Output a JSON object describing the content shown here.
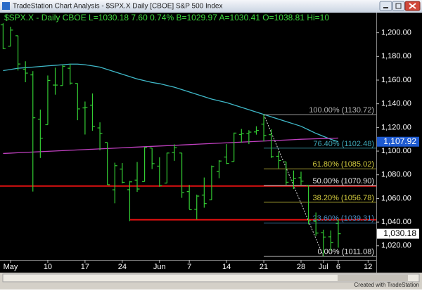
{
  "window": {
    "title": "TradeStation Chart Analysis - $SPX.X  Daily  [CBOE]  S&P 500 Index"
  },
  "footer": "Created with TradeStation",
  "chart_data": {
    "type": "ohlc",
    "header": "$SPX.X - Daily  CBOE  L=1030.18  7.60  0.74%  B=1029.97  A=1030.41  O=1038.81  Hi=10",
    "color": "#33cc33",
    "categories": [
      null,
      "May",
      null,
      null,
      null,
      null,
      "10",
      null,
      null,
      null,
      null,
      "17",
      null,
      null,
      null,
      null,
      "24",
      null,
      null,
      null,
      null,
      "Jun",
      null,
      null,
      null,
      "7",
      null,
      null,
      null,
      null,
      "14",
      null,
      null,
      null,
      null,
      "21",
      null,
      null,
      null,
      null,
      "28",
      null,
      null,
      "Jul",
      null,
      "6",
      null,
      null,
      null,
      "12",
      null
    ],
    "open": [
      1206.8,
      1188.6,
      1197.5,
      1169.2,
      1164.4,
      1127,
      1122.3,
      1155.8,
      1155.4,
      1170,
      1157.2,
      1136.5,
      1138.8,
      1119.6,
      1107.3,
      1067.3,
      1084.8,
      1067.4,
      1075.5,
      1074.3,
      1102.6,
      1087.3,
      1073,
      1098.8,
      1098.4,
      1065.8,
      1050.8,
      1062.8,
      1058.8,
      1082.7,
      1095,
      1091.2,
      1114,
      1115,
      1116.2,
      1122.8,
      1113.9,
      1095.6,
      1090.9,
      1075.1,
      1077.5,
      1071.1,
      1040.6,
      1031.1,
      1027.6,
      1038.81,
      null,
      null,
      null,
      null,
      null
    ],
    "high": [
      1207.99,
      1205.1,
      1197.5,
      1175.9,
      1167.6,
      1135.1,
      1163.9,
      1170.5,
      1172.9,
      1173.6,
      1157.2,
      1141.9,
      1148.7,
      1124.3,
      1107.3,
      1090.2,
      1089.9,
      1074.8,
      1090.8,
      1103.5,
      1102.6,
      1094.8,
      1098.6,
      1105.7,
      1098.4,
      1071.4,
      1063.2,
      1077.7,
      1087.8,
      1092.3,
      1105.9,
      1115.6,
      1118.7,
      1117.7,
      1121,
      1130.72,
      1118.5,
      1099.6,
      1090.9,
      1083.6,
      1082.6,
      1071.1,
      1048.1,
      1033.6,
      1032.9,
      1042.5,
      null,
      null,
      null,
      null,
      null
    ],
    "low": [
      1186.3,
      1188.6,
      1168.1,
      1158.2,
      1065.8,
      1094.2,
      1122.3,
      1147.7,
      1155.4,
      1156.1,
      1126.1,
      1114,
      1117.2,
      1100.7,
      1071.6,
      1055.9,
      1072.7,
      1040.8,
      1065.6,
      1074.3,
      1084.8,
      1069.9,
      1072.9,
      1091.8,
      1060.5,
      1050.8,
      1042.2,
      1052.2,
      1058.8,
      1077.1,
      1089,
      1091.2,
      1107.1,
      1105.9,
      1113.9,
      1108.2,
      1094.2,
      1085.3,
      1071.6,
      1067.9,
      1071.5,
      1038.1,
      1028.3,
      1011.08,
      1015.9,
      1018.4,
      null,
      null,
      null,
      null,
      null
    ],
    "close": [
      1186.69,
      1202.26,
      1173.6,
      1165.9,
      1128.15,
      1110.88,
      1159.73,
      1155.79,
      1171.67,
      1157.44,
      1135.68,
      1136.94,
      1120.8,
      1115.05,
      1071.59,
      1087.69,
      1073.65,
      1074.03,
      1067.95,
      1103.06,
      1089.41,
      1070.71,
      1098.38,
      1102.83,
      1064.88,
      1050.47,
      1062,
      1055.69,
      1086.84,
      1091.6,
      1089.63,
      1115.23,
      1114.61,
      1116.04,
      1117.51,
      1113.2,
      1095.31,
      1092.04,
      1073.69,
      1076.76,
      1074.57,
      1041.24,
      1030.71,
      1027.37,
      1022.58,
      1030.18,
      null,
      null,
      null,
      null,
      null
    ],
    "overlays": [
      {
        "color": "#3fb8c8",
        "values": [
          1168,
          1169,
          1170,
          1170.5,
          1171,
          1171.5,
          1172,
          1172.5,
          1173,
          1173.5,
          1173.5,
          1173,
          1172,
          1171,
          1169,
          1167,
          1165,
          1163,
          1161,
          1159.5,
          1158,
          1157,
          1155.5,
          1154,
          1152,
          1150,
          1148,
          1146,
          1144,
          1142.5,
          1141,
          1139,
          1137,
          1135,
          1133,
          1131,
          1129,
          1127,
          1125,
          1123,
          1121,
          1118,
          1115,
          1112.5,
          1110,
          1107.92,
          null,
          null,
          null,
          null,
          null
        ]
      },
      {
        "color": "#c040c0",
        "values": [
          1098,
          1098.3,
          1098.6,
          1098.9,
          1099.2,
          1099.5,
          1099.8,
          1100.1,
          1100.4,
          1100.7,
          1101,
          1101.3,
          1101.6,
          1101.9,
          1102.2,
          1102.5,
          1102.8,
          1103.1,
          1103.4,
          1103.7,
          1104,
          1104.3,
          1104.6,
          1104.9,
          1105.2,
          1105.5,
          1105.8,
          1106.1,
          1106.4,
          1106.7,
          1107,
          1107.3,
          1107.6,
          1107.9,
          1108.2,
          1108.5,
          1108.8,
          1109.1,
          1109.4,
          1109.7,
          1110,
          1110.2,
          1110.4,
          1110.6,
          1110.8,
          1111,
          null,
          null,
          null,
          null,
          null
        ]
      }
    ],
    "fib_levels": [
      {
        "value": 1130.72,
        "label": "100.00% (1130.72)",
        "color": "#b4b4b4"
      },
      {
        "value": 1102.48,
        "label": "76.40% (1102.48)",
        "color": "#3fa8b8"
      },
      {
        "value": 1085.02,
        "label": "61.80% (1085.02)",
        "color": "#d8d040"
      },
      {
        "value": 1070.9,
        "label": "50.00% (1070.90)",
        "color": "#e8e8e8"
      },
      {
        "value": 1056.78,
        "label": "38.20% (1056.78)",
        "color": "#d8d040"
      },
      {
        "value": 1039.31,
        "label": "23.60% (1039.31)",
        "color": "#4a90c8"
      },
      {
        "value": 1011.08,
        "label": "0.00% (1011.08)",
        "color": "#e8e8e8"
      }
    ],
    "hlines": [
      {
        "value": 1070.5,
        "color": "#e01010"
      },
      {
        "value": 1042,
        "color": "#e01010"
      }
    ],
    "price_markers": [
      {
        "value": 1107.92,
        "label": "1,107.92",
        "color": "#1e5ad0",
        "text_color": "#ffffff"
      },
      {
        "value": 1030.18,
        "label": "1,030.18",
        "color": "#ffffff",
        "text_color": "#000000"
      }
    ],
    "ylim": [
      1008,
      1217
    ],
    "yticks": [
      {
        "value": 1020,
        "label": "1,020.00"
      },
      {
        "value": 1040,
        "label": "1,040.00"
      },
      {
        "value": 1060,
        "label": "1,060.00"
      },
      {
        "value": 1080,
        "label": "1,080.00"
      },
      {
        "value": 1100,
        "label": "1,100.00"
      },
      {
        "value": 1120,
        "label": "1,120.00"
      },
      {
        "value": 1140,
        "label": "1,140.00"
      },
      {
        "value": 1160,
        "label": "1,160.00"
      },
      {
        "value": 1180,
        "label": "1,180.00"
      },
      {
        "value": 1200,
        "label": "1,200.00"
      }
    ]
  }
}
